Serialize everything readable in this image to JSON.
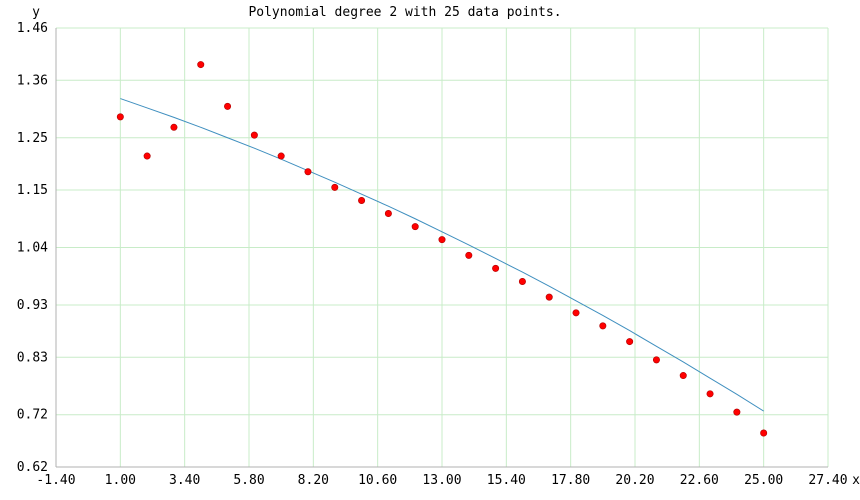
{
  "chart_data": {
    "type": "scatter",
    "title": "Polynomial degree 2 with 25 data points.",
    "xlabel": "x",
    "ylabel": "y",
    "xlim": [
      -1.4,
      27.4
    ],
    "ylim": [
      0.62,
      1.46
    ],
    "x_ticks": [
      "-1.40",
      "1.00",
      "3.40",
      "5.80",
      "8.20",
      "10.60",
      "13.00",
      "15.40",
      "17.80",
      "20.20",
      "22.60",
      "25.00",
      "27.40"
    ],
    "y_ticks": [
      "0.62",
      "0.72",
      "0.83",
      "0.93",
      "1.04",
      "1.15",
      "1.25",
      "1.36",
      "1.46"
    ],
    "grid": true,
    "series": [
      {
        "kind": "points",
        "color": "#ff0000",
        "x": [
          1,
          2,
          3,
          4,
          5,
          6,
          7,
          8,
          9,
          10,
          11,
          12,
          13,
          14,
          15,
          16,
          17,
          18,
          19,
          20,
          21,
          22,
          23,
          24,
          25
        ],
        "y": [
          1.29,
          1.215,
          1.27,
          1.39,
          1.31,
          1.255,
          1.215,
          1.185,
          1.155,
          1.13,
          1.105,
          1.08,
          1.055,
          1.025,
          1.0,
          0.975,
          0.945,
          0.915,
          0.89,
          0.86,
          0.825,
          0.795,
          0.76,
          0.725,
          0.685
        ]
      },
      {
        "kind": "fit",
        "color": "#3f8fbf",
        "x": [
          1,
          2,
          3,
          4,
          5,
          6,
          7,
          8,
          9,
          10,
          11,
          12,
          13,
          14,
          15,
          16,
          17,
          18,
          19,
          20,
          21,
          22,
          23,
          24,
          25
        ],
        "y": [
          1.325,
          1.307,
          1.289,
          1.27,
          1.25,
          1.23,
          1.209,
          1.187,
          1.165,
          1.142,
          1.119,
          1.095,
          1.07,
          1.045,
          1.019,
          0.993,
          0.966,
          0.938,
          0.91,
          0.881,
          0.851,
          0.821,
          0.79,
          0.759,
          0.727
        ]
      }
    ]
  }
}
